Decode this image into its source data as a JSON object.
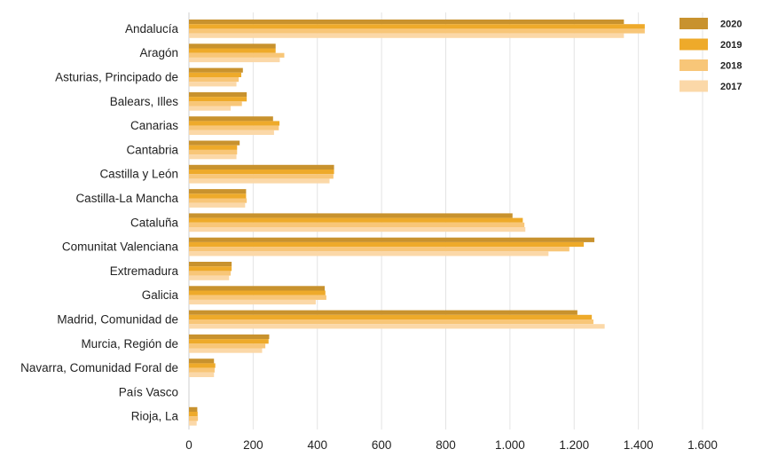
{
  "chart_data": {
    "type": "bar",
    "orientation": "horizontal",
    "title": "",
    "xlabel": "",
    "ylabel": "",
    "xlim": [
      0,
      1600
    ],
    "x_ticks": [
      0,
      200,
      400,
      600,
      800,
      1000,
      1200,
      1400,
      1600
    ],
    "x_tick_labels": [
      "0",
      "200",
      "400",
      "600",
      "800",
      "1.000",
      "1.200",
      "1.400",
      "1.600"
    ],
    "grid": "vertical",
    "legend_position": "top-right",
    "categories": [
      "Andalucía",
      "Aragón",
      "Asturias, Principado de",
      "Balears, Illes",
      "Canarias",
      "Cantabria",
      "Castilla y León",
      "Castilla-La Mancha",
      "Cataluña",
      "Comunitat Valenciana",
      "Extremadura",
      "Galicia",
      "Madrid, Comunidad de",
      "Murcia, Región de",
      "Navarra, Comunidad Foral de",
      "País Vasco",
      "Rioja, La"
    ],
    "series": [
      {
        "name": "2020",
        "color": "#c8922e",
        "values": [
          1355,
          270,
          168,
          180,
          262,
          158,
          452,
          178,
          1008,
          1263,
          133,
          423,
          1210,
          250,
          78,
          0,
          26
        ]
      },
      {
        "name": "2019",
        "color": "#eeaa2a",
        "values": [
          1420,
          270,
          163,
          180,
          282,
          150,
          452,
          178,
          1040,
          1230,
          133,
          425,
          1255,
          248,
          82,
          0,
          27
        ]
      },
      {
        "name": "2018",
        "color": "#f8c678",
        "values": [
          1420,
          297,
          155,
          165,
          280,
          150,
          450,
          180,
          1045,
          1185,
          130,
          428,
          1260,
          238,
          80,
          0,
          28
        ]
      },
      {
        "name": "2017",
        "color": "#fbd8a8",
        "values": [
          1355,
          283,
          148,
          130,
          265,
          148,
          438,
          175,
          1048,
          1120,
          125,
          395,
          1295,
          228,
          78,
          0,
          24
        ]
      }
    ]
  }
}
